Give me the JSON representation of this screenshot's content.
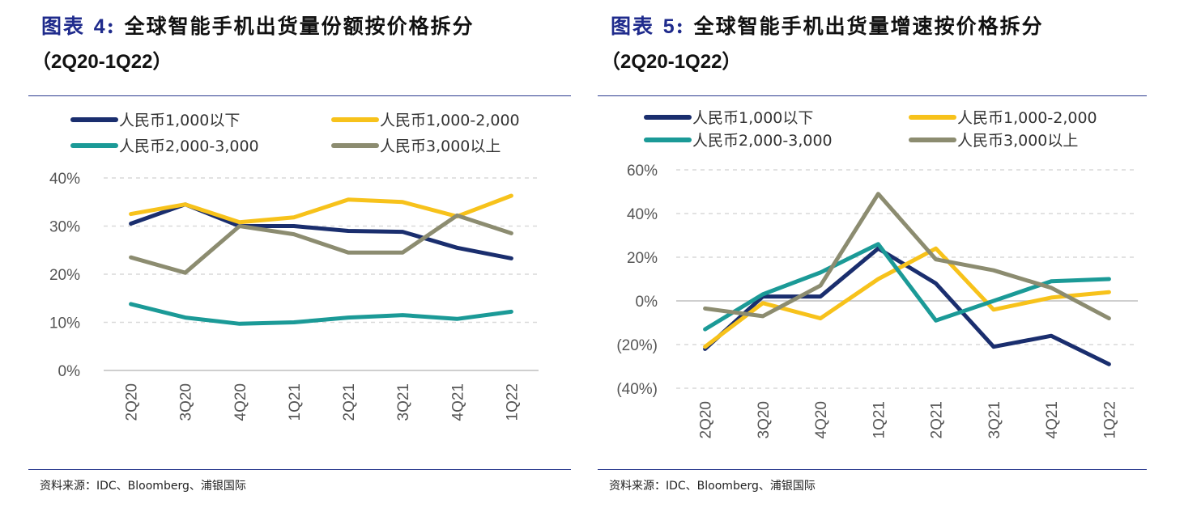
{
  "panels": [
    {
      "title_prefix": "图表",
      "title_num": "4",
      "title_colon": ":",
      "title_text": "全球智能手机出货量份额按价格拆分",
      "subtitle": "（2Q20-1Q22）",
      "source": "资料来源：IDC、Bloomberg、浦银国际"
    },
    {
      "title_prefix": "图表",
      "title_num": "5",
      "title_colon": ":",
      "title_text": "全球智能手机出货量增速按价格拆分",
      "subtitle": "（2Q20-1Q22）",
      "source": "资料来源：IDC、Bloomberg、浦银国际"
    }
  ],
  "chart_data": [
    {
      "type": "line",
      "categories": [
        "2Q20",
        "3Q20",
        "4Q20",
        "1Q21",
        "2Q21",
        "3Q21",
        "4Q21",
        "1Q22"
      ],
      "ylim": [
        0,
        40
      ],
      "yticks": [
        0,
        10,
        20,
        30,
        40
      ],
      "ytick_labels": [
        "0%",
        "10%",
        "20%",
        "30%",
        "40%"
      ],
      "grid": true,
      "legend_position": "top",
      "series": [
        {
          "name": "人民币1,000以下",
          "color": "#1a2e6e",
          "values": [
            30.5,
            34.5,
            30.0,
            30.0,
            29.0,
            28.8,
            25.5,
            23.3
          ]
        },
        {
          "name": "人民币1,000-2,000",
          "color": "#f7c21b",
          "values": [
            32.5,
            34.5,
            30.8,
            31.8,
            35.5,
            35.0,
            32.0,
            36.3
          ]
        },
        {
          "name": "人民币2,000-3,000",
          "color": "#1b9a97",
          "values": [
            13.8,
            11.0,
            9.7,
            10.0,
            11.0,
            11.5,
            10.7,
            12.2
          ]
        },
        {
          "name": "人民币3,000以上",
          "color": "#8c8c70",
          "values": [
            23.5,
            20.3,
            30.0,
            28.3,
            24.5,
            24.5,
            32.2,
            28.5
          ]
        }
      ]
    },
    {
      "type": "line",
      "categories": [
        "2Q20",
        "3Q20",
        "4Q20",
        "1Q21",
        "2Q21",
        "3Q21",
        "4Q21",
        "1Q22"
      ],
      "ylim": [
        -40,
        60
      ],
      "yticks": [
        -40,
        -20,
        0,
        20,
        40,
        60
      ],
      "ytick_labels": [
        "(40%)",
        "(20%)",
        "0%",
        "20%",
        "40%",
        "60%"
      ],
      "grid": true,
      "legend_position": "top",
      "series": [
        {
          "name": "人民币1,000以下",
          "color": "#1a2e6e",
          "values": [
            -22,
            2,
            2,
            24,
            8,
            -21,
            -16,
            -29
          ]
        },
        {
          "name": "人民币1,000-2,000",
          "color": "#f7c21b",
          "values": [
            -21,
            -1,
            -8,
            10,
            24,
            -4,
            1.5,
            4
          ]
        },
        {
          "name": "人民币2,000-3,000",
          "color": "#1b9a97",
          "values": [
            -13,
            3,
            13,
            26,
            -9,
            0,
            9,
            10
          ]
        },
        {
          "name": "人民币3,000以上",
          "color": "#8c8c70",
          "values": [
            -3.5,
            -7,
            7,
            49,
            19,
            14,
            6,
            -8
          ]
        }
      ]
    }
  ]
}
